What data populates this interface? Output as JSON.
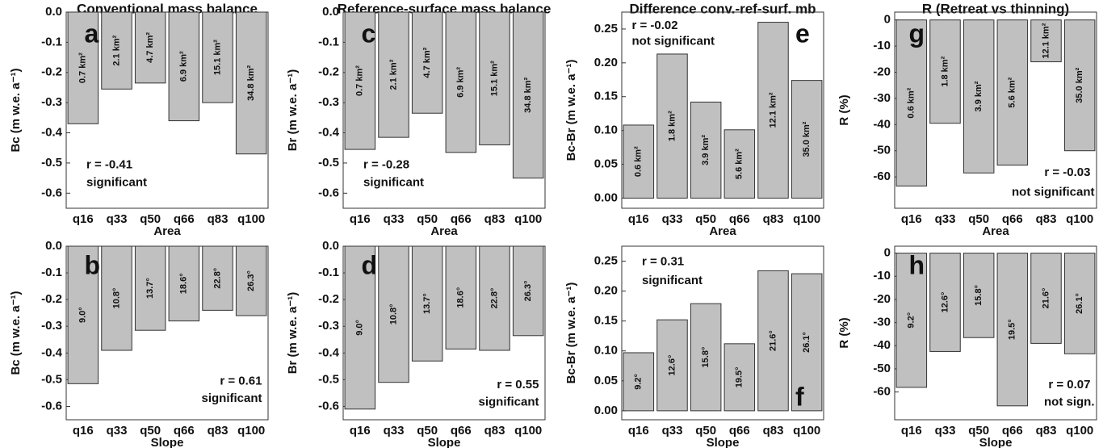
{
  "chart_data": [
    {
      "type": "bar",
      "title": "Conventional mass balance",
      "panel_label": "a",
      "ylabel": "Bc (m w.e. a⁻¹)",
      "xlabel": "Area",
      "categories": [
        "q16",
        "q33",
        "q50",
        "q66",
        "q83",
        "q100"
      ],
      "values": [
        -0.37,
        -0.255,
        -0.235,
        -0.36,
        -0.3,
        -0.47
      ],
      "bar_labels": [
        "0.7 km²",
        "2.1 km²",
        "4.7 km²",
        "6.9 km²",
        "15.1 km²",
        "34.8 km²"
      ],
      "r_text": "r = -0.41",
      "significance": "significant",
      "color": "#c0c0c0",
      "ylim": [
        -0.65,
        0
      ],
      "yticks": [
        {
          "value": 0,
          "label": "0.0"
        },
        -0.1,
        -0.2,
        -0.3,
        -0.4,
        -0.5,
        -0.6
      ]
    },
    {
      "type": "bar",
      "panel_label": "b",
      "ylabel": "Bc (m w.e. a⁻¹)",
      "xlabel": "Slope",
      "categories": [
        "q16",
        "q33",
        "q50",
        "q66",
        "q83",
        "q100"
      ],
      "values": [
        -0.515,
        -0.39,
        -0.315,
        -0.28,
        -0.24,
        -0.26
      ],
      "bar_labels": [
        "9.0°",
        "10.8°",
        "13.7°",
        "18.6°",
        "22.8°",
        "26.3°"
      ],
      "r_text": "r = 0.61",
      "significance": "significant",
      "color": "#c0c0c0",
      "ylim": [
        -0.65,
        0
      ],
      "yticks": [
        {
          "value": 0,
          "label": "0.0"
        },
        -0.1,
        -0.2,
        -0.3,
        -0.4,
        -0.5,
        -0.6
      ]
    },
    {
      "type": "bar",
      "title": "Reference-surface mass balance",
      "panel_label": "c",
      "ylabel": "Br (m w.e. a⁻¹)",
      "xlabel": "Area",
      "categories": [
        "q16",
        "q33",
        "q50",
        "q66",
        "q83",
        "q100"
      ],
      "values": [
        -0.455,
        -0.415,
        -0.335,
        -0.465,
        -0.44,
        -0.55
      ],
      "bar_labels": [
        "0.7 km²",
        "2.1 km²",
        "4.7 km²",
        "6.9 km²",
        "15.1 km²",
        "34.8 km²"
      ],
      "r_text": "r = -0.28",
      "significance": "significant",
      "color": "#c0c0c0",
      "ylim": [
        -0.65,
        0
      ],
      "yticks": [
        {
          "value": 0,
          "label": "0.0"
        },
        -0.1,
        -0.2,
        -0.3,
        -0.4,
        -0.5,
        -0.6
      ]
    },
    {
      "type": "bar",
      "panel_label": "d",
      "ylabel": "Br (m w.e. a⁻¹)",
      "xlabel": "Slope",
      "categories": [
        "q16",
        "q33",
        "q50",
        "q66",
        "q83",
        "q100"
      ],
      "values": [
        -0.61,
        -0.51,
        -0.43,
        -0.385,
        -0.39,
        -0.335
      ],
      "bar_labels": [
        "9.0°",
        "10.8°",
        "13.7°",
        "18.6°",
        "22.8°",
        "26.3°"
      ],
      "r_text": "r = 0.55",
      "significance": "significant",
      "color": "#c0c0c0",
      "ylim": [
        -0.65,
        0
      ],
      "yticks": [
        {
          "value": 0,
          "label": "0.0"
        },
        -0.1,
        -0.2,
        -0.3,
        -0.4,
        -0.5,
        -0.6
      ]
    },
    {
      "type": "bar",
      "title": "Difference conv.-ref-surf. mb",
      "panel_label": "e",
      "ylabel": "Bc-Br (m w.e. a⁻¹)",
      "xlabel": "Area",
      "categories": [
        "q16",
        "q33",
        "q50",
        "q66",
        "q83",
        "q100"
      ],
      "values": [
        0.108,
        0.213,
        0.142,
        0.101,
        0.26,
        0.174
      ],
      "bar_labels": [
        "0.6 km²",
        "1.8 km²",
        "3.9 km²",
        "5.6 km²",
        "12.1 km²",
        "35.0 km²"
      ],
      "r_text": "r = -0.02",
      "significance": "not significant",
      "color": "#c0c0c0",
      "ylim": [
        -0.015,
        0.275
      ],
      "yticks": [
        {
          "value": 0,
          "label": "0.00"
        },
        0.05,
        {
          "value": 0.1,
          "label": "0.10"
        },
        0.15,
        {
          "value": 0.2,
          "label": "0.20"
        },
        0.25
      ]
    },
    {
      "type": "bar",
      "panel_label": "f",
      "ylabel": "Bc-Br (m w.e. a⁻¹)",
      "xlabel": "Slope",
      "categories": [
        "q16",
        "q33",
        "q50",
        "q66",
        "q83",
        "q100"
      ],
      "values": [
        0.097,
        0.152,
        0.179,
        0.112,
        0.234,
        0.229
      ],
      "bar_labels": [
        "9.2°",
        "12.6°",
        "15.8°",
        "19.5°",
        "21.6°",
        "26.1°"
      ],
      "r_text": "r = 0.31",
      "significance": "significant",
      "color": "#c0c0c0",
      "ylim": [
        -0.015,
        0.275
      ],
      "yticks": [
        {
          "value": 0,
          "label": "0.00"
        },
        0.05,
        {
          "value": 0.1,
          "label": "0.10"
        },
        0.15,
        {
          "value": 0.2,
          "label": "0.20"
        },
        0.25
      ]
    },
    {
      "type": "bar",
      "title": "R (Retreat vs thinning)",
      "panel_label": "g",
      "ylabel": "R (%)",
      "xlabel": "Area",
      "categories": [
        "q16",
        "q33",
        "q50",
        "q66",
        "q83",
        "q100"
      ],
      "values": [
        -63.5,
        -39.5,
        -58.5,
        -55.5,
        -16,
        -50
      ],
      "bar_labels": [
        "0.6 km²",
        "1.8 km²",
        "3.9 km²",
        "5.6 km²",
        "12.1 km²",
        "35.0 km²"
      ],
      "r_text": "r = -0.03",
      "significance": "not significant",
      "color": "#c0c0c0",
      "ylim": [
        -72,
        3
      ],
      "yticks": [
        0,
        -10,
        -20,
        -30,
        -40,
        -50,
        -60
      ]
    },
    {
      "type": "bar",
      "panel_label": "h",
      "ylabel": "R (%)",
      "xlabel": "Slope",
      "categories": [
        "q16",
        "q33",
        "q50",
        "q66",
        "q83",
        "q100"
      ],
      "values": [
        -58,
        -42.5,
        -36.5,
        -66,
        -39,
        -43.5
      ],
      "bar_labels": [
        "9.2°",
        "12.6°",
        "15.8°",
        "19.5°",
        "21.6°",
        "26.1°"
      ],
      "r_text": "r = 0.07",
      "significance": "not sign.",
      "color": "#c0c0c0",
      "ylim": [
        -72,
        3
      ],
      "yticks": [
        0,
        -10,
        -20,
        -30,
        -40,
        -50,
        -60
      ]
    }
  ]
}
